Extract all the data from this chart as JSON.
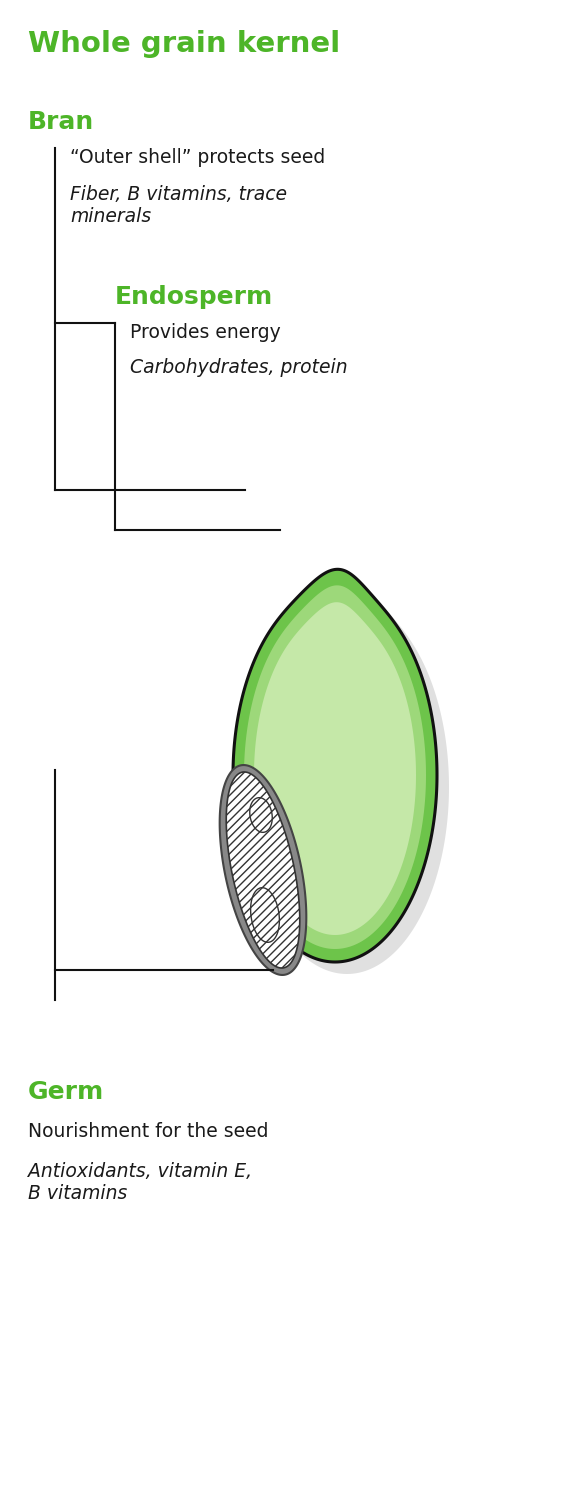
{
  "title": "Whole grain kernel",
  "title_color": "#4db528",
  "title_fontsize": 21,
  "bg_color": "#ffffff",
  "green_bold": "#4db528",
  "black": "#1a1a1a",
  "bran_label": "Bran",
  "bran_desc1": "“Outer shell” protects seed",
  "bran_desc2_italic": "Fiber, B vitamins, trace\nminerals",
  "endosperm_label": "Endosperm",
  "endosperm_desc1": "Provides energy",
  "endosperm_desc2_italic": "Carbohydrates, protein",
  "germ_label": "Germ",
  "germ_desc1": "Nourishment for the seed",
  "germ_desc2_italic": "Antioxidants, vitamin E,\nB vitamins",
  "outer_bran_color": "#6dc44a",
  "inner_bran_color": "#9dd87a",
  "endosperm_color": "#c5e8a8",
  "kernel_border": "#111111",
  "shadow_color": "#cccccc",
  "germ_outer_color": "#888888",
  "germ_hatch_color": "#333333",
  "line_color": "#111111",
  "line_width": 1.5
}
